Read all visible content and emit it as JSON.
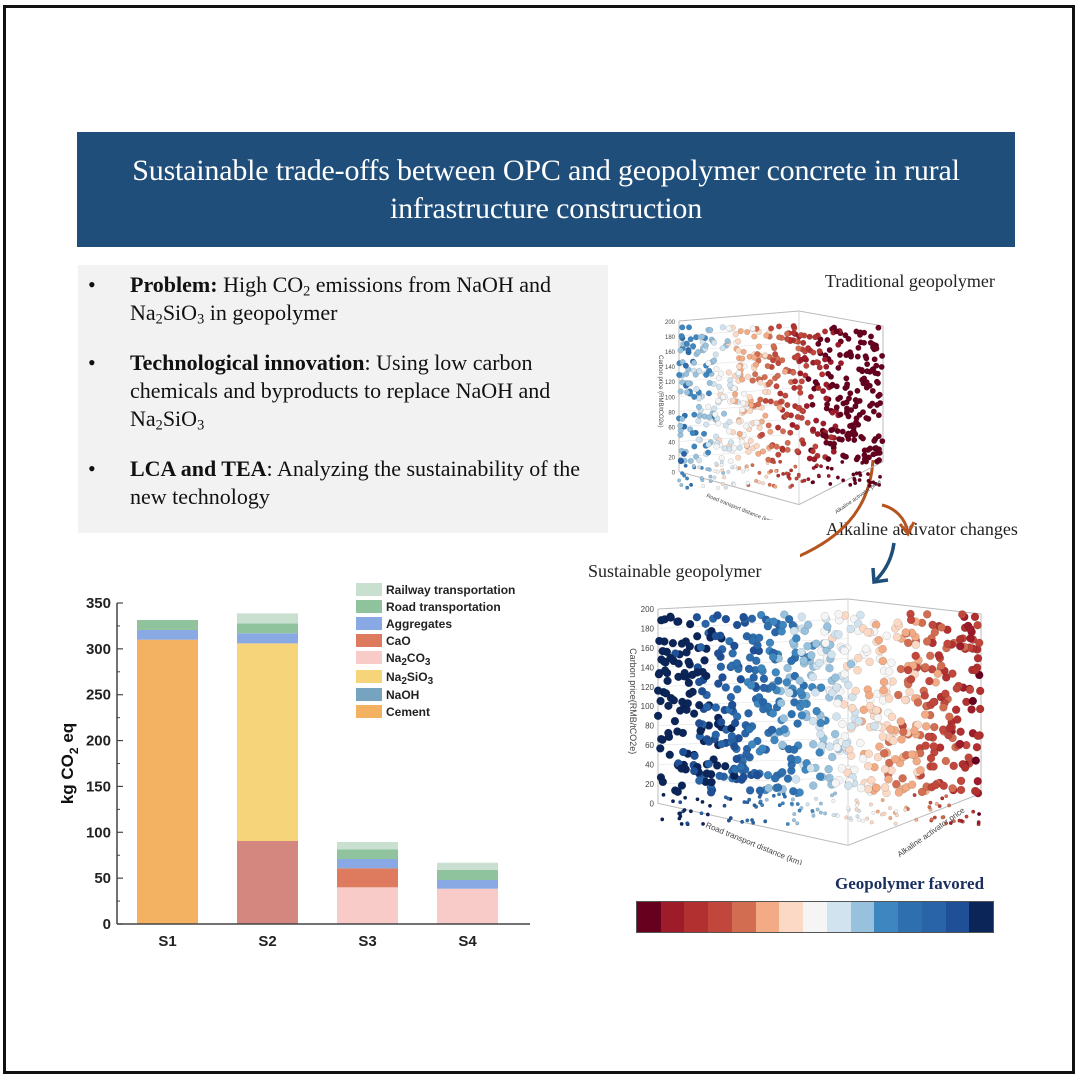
{
  "banner": {
    "title": "Sustainable trade-offs between OPC and geopolymer concrete in rural infrastructure construction"
  },
  "infobox": {
    "items": [
      {
        "bold": "Problem:",
        "text_parts": [
          " High CO",
          "2",
          " emissions from NaOH and Na",
          "2",
          "SiO",
          "3",
          " in geopolymer"
        ]
      },
      {
        "bold": "Technological innovation",
        "text_parts": [
          ": Using low carbon chemicals and byproducts to replace NaOH and Na",
          "2",
          "SiO",
          "3"
        ]
      },
      {
        "bold": "LCA and TEA",
        "text_parts": [
          ": Analyzing the sustainability of the new technology"
        ]
      }
    ]
  },
  "captions": {
    "traditional": "Traditional geopolymer",
    "alkaline": "Alkaline activator changes",
    "sustainable": "Sustainable geopolymer",
    "favored": "Geopolymer favored"
  },
  "colors": {
    "banner_bg": "#1f4e7a",
    "arrow_orange": "#b5541e",
    "arrow_blue": "#1f4e7a"
  },
  "colorbar": [
    "#67001f",
    "#9e1b2a",
    "#b2302f",
    "#c1463c",
    "#d26d52",
    "#f2ab84",
    "#fbd9c4",
    "#f5f5f5",
    "#d2e3f0",
    "#97c1dd",
    "#3e86c0",
    "#2d6faf",
    "#2a64a8",
    "#1f4f97",
    "#0b2559"
  ],
  "plot3d": {
    "traditional": {
      "zlabel": "Carbon price (RMB/tCO2e)",
      "xlabel": "Road transport distance (km)",
      "ylabel": "Alkaline activator price",
      "zticks": [
        "0",
        "20",
        "40",
        "60",
        "80",
        "100",
        "120",
        "140",
        "160",
        "180",
        "200"
      ]
    },
    "sustainable": {
      "zlabel": "Carbon price(RMB/tCO2e)",
      "xlabel": "Road transport distance (km)",
      "ylabel": "Alkaline activator price",
      "zticks": [
        "0",
        "20",
        "40",
        "60",
        "80",
        "100",
        "120",
        "140",
        "160",
        "180",
        "200"
      ],
      "xticks": [
        "20",
        "40",
        "60",
        "80",
        "100",
        "120",
        "140"
      ],
      "yticks": [
        "40%",
        "60%",
        "80%",
        "100%",
        "120%",
        "140%",
        "160%"
      ]
    }
  },
  "chart_data": {
    "type": "bar",
    "stacked": true,
    "title": "",
    "xlabel": "",
    "ylabel": "kg CO2 eq",
    "ylim": [
      0,
      350
    ],
    "yticks": [
      0,
      50,
      100,
      150,
      200,
      250,
      300,
      350
    ],
    "categories": [
      "S1",
      "S2",
      "S3",
      "S4"
    ],
    "legend_position": "top-right",
    "series": [
      {
        "name": "Cement",
        "label_parts": [
          "Cement"
        ],
        "color": "#f2b262",
        "values": [
          310,
          0,
          0,
          0
        ]
      },
      {
        "name": "NaOH",
        "label_parts": [
          "NaOH"
        ],
        "color": "#76a3bf",
        "bar_color": "#d4877f",
        "values": [
          0,
          90.5,
          0,
          0
        ]
      },
      {
        "name": "Na2SiO3",
        "label_parts": [
          "Na",
          "2",
          "SiO",
          "3"
        ],
        "color": "#f6d47a",
        "values": [
          0,
          215.5,
          0,
          0
        ]
      },
      {
        "name": "Na2CO3",
        "label_parts": [
          "Na",
          "2",
          "CO",
          "3"
        ],
        "color": "#f8cbc8",
        "values": [
          0,
          0,
          40,
          38.5
        ]
      },
      {
        "name": "CaO",
        "label_parts": [
          "CaO"
        ],
        "color": "#de7a5e",
        "values": [
          0,
          0,
          20.7,
          0
        ]
      },
      {
        "name": "Aggregates",
        "label_parts": [
          "Aggregates"
        ],
        "color": "#88a9e3",
        "values": [
          10.6,
          11,
          10.2,
          9.5
        ]
      },
      {
        "name": "Road transportation",
        "label_parts": [
          "Road transportation"
        ],
        "color": "#8fc39d",
        "values": [
          10.9,
          10.8,
          10.6,
          10.9
        ]
      },
      {
        "name": "Railway transportation",
        "label_parts": [
          "Railway transportation"
        ],
        "color": "#c9e0d1",
        "values": [
          0,
          10.9,
          7.9,
          7.9
        ]
      }
    ]
  }
}
